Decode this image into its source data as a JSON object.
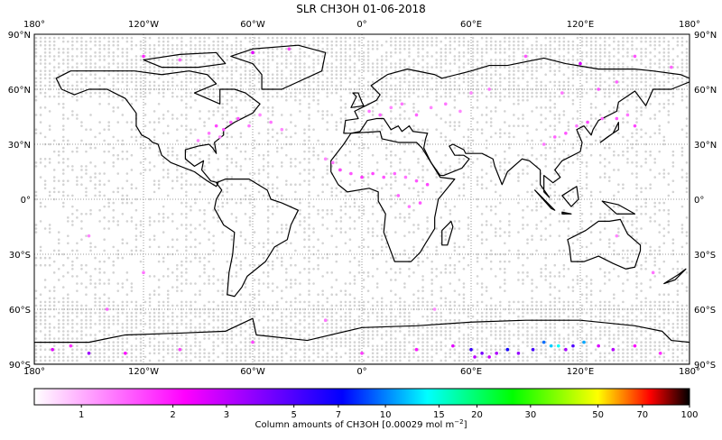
{
  "title": "SLR CH3OH 01-06-2018",
  "chart_data": {
    "type": "scatter",
    "title": "SLR CH3OH 01-06-2018",
    "projection": "equirectangular",
    "xlim": [
      -180,
      180
    ],
    "ylim": [
      -90,
      90
    ],
    "grid": true,
    "lon_ticks": [
      {
        "v": -180,
        "label": "180°"
      },
      {
        "v": -120,
        "label": "120°W"
      },
      {
        "v": -60,
        "label": "60°W"
      },
      {
        "v": 0,
        "label": "0°"
      },
      {
        "v": 60,
        "label": "60°E"
      },
      {
        "v": 120,
        "label": "120°E"
      },
      {
        "v": 180,
        "label": "180°"
      }
    ],
    "lat_ticks": [
      {
        "v": 90,
        "label": "90°N"
      },
      {
        "v": 60,
        "label": "60°N"
      },
      {
        "v": 30,
        "label": "30°N"
      },
      {
        "v": 0,
        "label": "0°"
      },
      {
        "v": -30,
        "label": "30°S"
      },
      {
        "v": -60,
        "label": "60°S"
      },
      {
        "v": -90,
        "label": "90°S"
      }
    ],
    "no_data_color": "#d3d3d3",
    "points": [
      [
        -80,
        40,
        1.6
      ],
      [
        -76,
        38,
        1.5
      ],
      [
        -72,
        42,
        1.4
      ],
      [
        -84,
        36,
        1.3
      ],
      [
        -68,
        44,
        1.5
      ],
      [
        -78,
        34,
        1.2
      ],
      [
        -62,
        40,
        1.3
      ],
      [
        -56,
        46,
        1.2
      ],
      [
        -50,
        42,
        1.3
      ],
      [
        -44,
        38,
        1.2
      ],
      [
        -90,
        32,
        1.2
      ],
      [
        -12,
        16,
        1.6
      ],
      [
        -6,
        14,
        1.5
      ],
      [
        0,
        12,
        1.7
      ],
      [
        6,
        14,
        1.6
      ],
      [
        12,
        12,
        1.5
      ],
      [
        18,
        14,
        1.4
      ],
      [
        24,
        12,
        1.3
      ],
      [
        30,
        10,
        1.5
      ],
      [
        36,
        8,
        1.6
      ],
      [
        -16,
        20,
        1.3
      ],
      [
        -20,
        22,
        1.2
      ],
      [
        20,
        2,
        1.4
      ],
      [
        26,
        -4,
        1.3
      ],
      [
        32,
        -2,
        1.5
      ],
      [
        4,
        48,
        1.3
      ],
      [
        10,
        46,
        1.4
      ],
      [
        16,
        50,
        1.2
      ],
      [
        22,
        52,
        1.3
      ],
      [
        30,
        46,
        1.4
      ],
      [
        38,
        50,
        1.2
      ],
      [
        46,
        52,
        1.3
      ],
      [
        54,
        48,
        1.2
      ],
      [
        60,
        58,
        1.2
      ],
      [
        70,
        60,
        1.3
      ],
      [
        100,
        30,
        1.3
      ],
      [
        106,
        34,
        1.4
      ],
      [
        112,
        36,
        1.5
      ],
      [
        118,
        40,
        1.3
      ],
      [
        124,
        42,
        1.6
      ],
      [
        132,
        44,
        1.4
      ],
      [
        140,
        44,
        1.5
      ],
      [
        146,
        46,
        1.3
      ],
      [
        150,
        40,
        1.6
      ],
      [
        130,
        60,
        1.5
      ],
      [
        140,
        64,
        1.4
      ],
      [
        110,
        58,
        1.3
      ],
      [
        -120,
        78,
        1.8
      ],
      [
        -100,
        76,
        1.4
      ],
      [
        -60,
        80,
        2.5
      ],
      [
        -40,
        82,
        1.6
      ],
      [
        90,
        78,
        1.5
      ],
      [
        120,
        74,
        2.6
      ],
      [
        150,
        78,
        1.5
      ],
      [
        170,
        72,
        1.4
      ],
      [
        -150,
        -20,
        1.2
      ],
      [
        -120,
        -40,
        1.3
      ],
      [
        -140,
        -60,
        1.4
      ],
      [
        -20,
        -66,
        1.3
      ],
      [
        40,
        -60,
        1.2
      ],
      [
        140,
        -20,
        1.2
      ],
      [
        160,
        -40,
        1.3
      ],
      [
        -170,
        -82,
        2.5
      ],
      [
        -160,
        -80,
        1.8
      ],
      [
        -150,
        -84,
        3.5
      ],
      [
        -130,
        -84,
        2.2
      ],
      [
        -100,
        -82,
        1.6
      ],
      [
        -60,
        -78,
        1.6
      ],
      [
        0,
        -84,
        1.7
      ],
      [
        30,
        -82,
        2.0
      ],
      [
        50,
        -80,
        2.5
      ],
      [
        60,
        -82,
        5.5
      ],
      [
        62,
        -86,
        3.0
      ],
      [
        66,
        -84,
        4.2
      ],
      [
        70,
        -86,
        2.8
      ],
      [
        74,
        -84,
        3.2
      ],
      [
        80,
        -82,
        6.5
      ],
      [
        86,
        -84,
        3.6
      ],
      [
        94,
        -82,
        5.2
      ],
      [
        100,
        -78,
        9.5
      ],
      [
        104,
        -80,
        12
      ],
      [
        108,
        -80,
        14
      ],
      [
        112,
        -82,
        3.3
      ],
      [
        116,
        -80,
        5
      ],
      [
        122,
        -78,
        11
      ],
      [
        130,
        -80,
        2.6
      ],
      [
        138,
        -82,
        3.1
      ],
      [
        150,
        -80,
        2.2
      ],
      [
        164,
        -84,
        1.8
      ]
    ],
    "colorbar": {
      "label": "Column amounts of CH3OH [0.00029 mol m",
      "label_sup": "−2",
      "label_end": "]",
      "scale": "log",
      "range": [
        0.7,
        100
      ],
      "ticks": [
        {
          "v": 1,
          "label": "1"
        },
        {
          "v": 2,
          "label": "2"
        },
        {
          "v": 3,
          "label": "3"
        },
        {
          "v": 5,
          "label": "5"
        },
        {
          "v": 7,
          "label": "7"
        },
        {
          "v": 10,
          "label": "10"
        },
        {
          "v": 15,
          "label": "15"
        },
        {
          "v": 20,
          "label": "20"
        },
        {
          "v": 30,
          "label": "30"
        },
        {
          "v": 50,
          "label": "50"
        },
        {
          "v": 70,
          "label": "70"
        },
        {
          "v": 100,
          "label": "100"
        }
      ],
      "colors": [
        "#ffffff",
        "#ff00ff",
        "#0000ff",
        "#00ffff",
        "#00ff00",
        "#ffff00",
        "#ff0000",
        "#000000"
      ]
    }
  }
}
